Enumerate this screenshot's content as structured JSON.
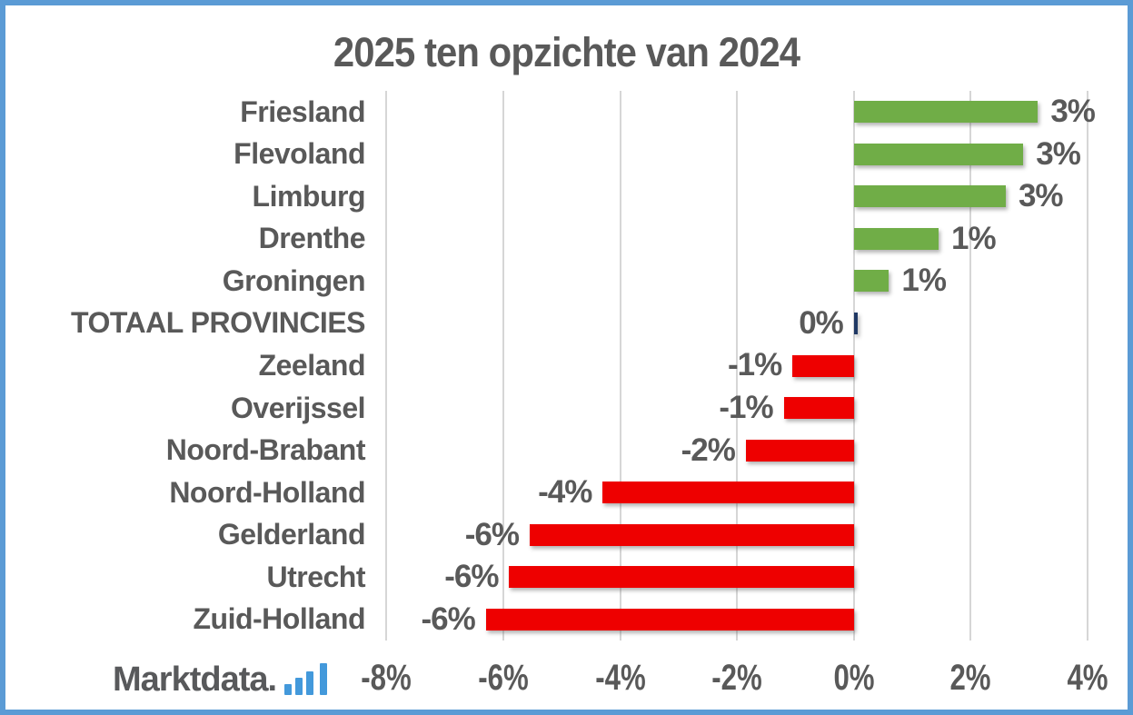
{
  "frame": {
    "border_color": "#5B9BD5",
    "background_color": "#FFFFFF"
  },
  "title": "2025 ten opzichte van 2024",
  "logo": {
    "text": "Marktdata.",
    "suffix_icon": "ascending-bars-nl",
    "text_color": "#58595B",
    "accent_color": "#4399DB"
  },
  "chart_data": {
    "type": "bar",
    "orientation": "horizontal",
    "title": "2025 ten opzichte van 2024",
    "categories": [
      "Friesland",
      "Flevoland",
      "Limburg",
      "Drenthe",
      "Groningen",
      "TOTAAL PROVINCIES",
      "Zeeland",
      "Overijssel",
      "Noord-Brabant",
      "Noord-Holland",
      "Gelderland",
      "Utrecht",
      "Zuid-Holland"
    ],
    "values": [
      3.15,
      2.9,
      2.6,
      1.45,
      0.6,
      0.05,
      -1.05,
      -1.2,
      -1.85,
      -4.3,
      -5.55,
      -5.9,
      -6.3
    ],
    "data_labels": [
      "3%",
      "3%",
      "3%",
      "1%",
      "1%",
      "0%",
      "-1%",
      "-1%",
      "-2%",
      "-4%",
      "-6%",
      "-6%",
      "-6%"
    ],
    "bar_colors": [
      "#70AD47",
      "#70AD47",
      "#70AD47",
      "#70AD47",
      "#70AD47",
      "#1F3864",
      "#EE0000",
      "#EE0000",
      "#EE0000",
      "#EE0000",
      "#EE0000",
      "#EE0000",
      "#EE0000"
    ],
    "positive_color": "#70AD47",
    "negative_color": "#EE0000",
    "total_color": "#1F3864",
    "label_color": "#595959",
    "x_axis": {
      "tick_labels": [
        "-8%",
        "-6%",
        "-4%",
        "-2%",
        "0%",
        "2%",
        "4%"
      ],
      "tick_values": [
        -8,
        -6,
        -4,
        -2,
        0,
        2,
        4
      ],
      "range": [
        -8.24,
        4.7
      ],
      "gridlines": true,
      "gridline_color": "#D6D6D6"
    },
    "legend": "none"
  }
}
